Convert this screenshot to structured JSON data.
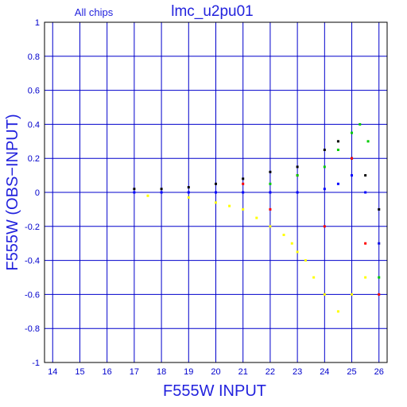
{
  "chart_data": {
    "type": "scatter",
    "title": "lmc_u2pu01",
    "subtitle": "All chips",
    "xlabel": "F555W INPUT",
    "ylabel": "F555W (OBS−INPUT)",
    "xlim": [
      13.7,
      26.3
    ],
    "ylim": [
      -1,
      1
    ],
    "grid": true,
    "x_ticks": [
      14,
      15,
      16,
      17,
      18,
      19,
      20,
      21,
      22,
      23,
      24,
      25,
      26
    ],
    "y_ticks": [
      1,
      0.8,
      0.6,
      0.4,
      0.2,
      0,
      -0.2,
      -0.4,
      -0.6,
      -0.8,
      -1
    ],
    "colors": {
      "axes": "#0000cc",
      "frame": "#000000",
      "yellow": "#ffff00",
      "black": "#000000",
      "red": "#ff0000",
      "green": "#00cc00",
      "blue": "#0000ff"
    },
    "series": [
      {
        "color": "#ffff00",
        "x": [
          17.5,
          19.0,
          20.0,
          20.5,
          21.0,
          21.5,
          22.0,
          22.5,
          22.8,
          23.0,
          23.3,
          23.6,
          24.0,
          24.5,
          25.0,
          25.5,
          26.0
        ],
        "y": [
          -0.02,
          -0.03,
          -0.06,
          -0.08,
          -0.1,
          -0.15,
          -0.2,
          -0.25,
          -0.3,
          -0.35,
          -0.4,
          -0.5,
          -0.6,
          -0.7,
          -0.6,
          -0.5,
          -0.3
        ]
      },
      {
        "color": "#000000",
        "x": [
          17.0,
          18.0,
          19.0,
          20.0,
          21.0,
          22.0,
          23.0,
          24.0,
          24.5,
          25.0,
          25.5,
          26.0
        ],
        "y": [
          0.02,
          0.02,
          0.03,
          0.05,
          0.08,
          0.12,
          0.15,
          0.25,
          0.3,
          0.2,
          0.1,
          -0.1
        ]
      },
      {
        "color": "#ff0000",
        "x": [
          20.0,
          21.0,
          22.0,
          23.0,
          24.0,
          25.0,
          25.5,
          26.0
        ],
        "y": [
          0.0,
          0.05,
          -0.1,
          0.1,
          -0.2,
          0.2,
          -0.3,
          -0.6
        ]
      },
      {
        "color": "#00cc00",
        "x": [
          22.0,
          23.0,
          24.0,
          24.5,
          25.0,
          25.3,
          25.6,
          26.0
        ],
        "y": [
          0.05,
          0.1,
          0.15,
          0.25,
          0.35,
          0.4,
          0.3,
          -0.5
        ]
      },
      {
        "color": "#0000ff",
        "x": [
          17.0,
          18.0,
          19.0,
          20.0,
          21.0,
          22.0,
          23.0,
          24.0,
          24.5,
          25.0,
          25.5,
          26.0
        ],
        "y": [
          0.0,
          0.0,
          0.0,
          0.0,
          0.0,
          0.0,
          0.0,
          0.02,
          0.05,
          0.1,
          0.0,
          -0.3
        ]
      }
    ]
  }
}
